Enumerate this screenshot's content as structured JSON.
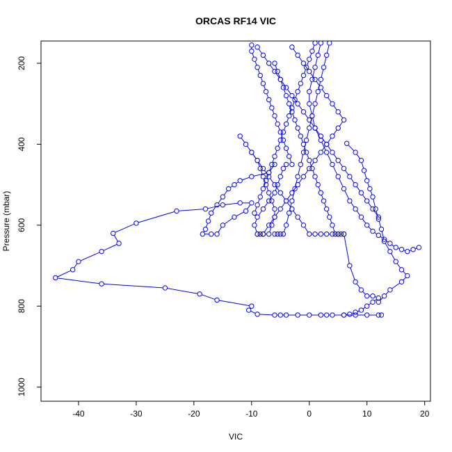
{
  "chart_data": {
    "type": "line",
    "title": "ORCAS RF14 VIC",
    "xlabel": "VIC",
    "ylabel": "Pressure (mbar)",
    "xlim": [
      -46.5,
      21
    ],
    "ylim": [
      1035,
      145
    ],
    "y_reversed": true,
    "grid": false,
    "x_ticks": [
      -40,
      -30,
      -20,
      -10,
      0,
      10,
      20
    ],
    "x_tick_labels": [
      "-40",
      "-30",
      "-20",
      "-10",
      "0",
      "10",
      "20"
    ],
    "y_ticks": [
      200,
      400,
      600,
      800,
      1000
    ],
    "y_tick_labels": [
      "200",
      "400",
      "600",
      "800",
      "1000"
    ],
    "series_color": "#0000ff",
    "series": [
      {
        "x": [
          -6,
          -7,
          -10,
          -12,
          -13,
          -14,
          -15,
          -16,
          -17,
          -17.5,
          -18,
          -18.5,
          -17,
          -16,
          -15,
          -13,
          -11,
          -10,
          -12,
          -15,
          -18,
          -23,
          -30,
          -34,
          -33,
          -36,
          -40,
          -41,
          -44,
          -36,
          -25,
          -19,
          -16,
          -10,
          -10.5,
          -9,
          -6,
          -5,
          -4,
          -2,
          0,
          2,
          3,
          4,
          6,
          8,
          10,
          12,
          12.5
        ],
        "y": [
          450,
          470,
          480,
          490,
          500,
          510,
          530,
          550,
          570,
          590,
          610,
          622,
          622,
          622,
          600,
          580,
          565,
          545,
          545,
          550,
          560,
          565,
          595,
          620,
          645,
          665,
          690,
          710,
          730,
          745,
          755,
          770,
          785,
          800,
          810,
          820,
          822,
          822,
          822,
          822,
          822,
          822,
          822,
          822,
          822,
          822,
          822,
          822,
          822
        ]
      },
      {
        "x": [
          -10,
          -9,
          -8.5,
          -8,
          -7.5,
          -7,
          -6.5,
          -6,
          -6,
          -6.5,
          -7,
          -8,
          -8.5,
          -9,
          -9.5,
          -9,
          -8,
          -7,
          -6,
          -5.5,
          -5,
          -4.5,
          -4
        ],
        "y": [
          420,
          440,
          460,
          480,
          500,
          520,
          540,
          560,
          580,
          600,
          622,
          622,
          622,
          622,
          600,
          580,
          560,
          540,
          520,
          500,
          480,
          460,
          450
        ]
      },
      {
        "x": [
          -12,
          -11,
          -10,
          -9,
          -8,
          -7,
          -6,
          -5,
          -4,
          -3,
          -2,
          -1,
          0,
          1,
          2,
          3,
          4,
          5,
          6,
          7,
          8,
          9,
          10,
          11,
          12,
          11,
          10,
          9,
          8,
          7,
          6
        ],
        "y": [
          380,
          400,
          420,
          440,
          460,
          480,
          500,
          520,
          540,
          560,
          580,
          600,
          622,
          622,
          622,
          622,
          622,
          622,
          622,
          700,
          740,
          760,
          775,
          775,
          780,
          790,
          800,
          810,
          815,
          820,
          822
        ]
      },
      {
        "x": [
          -9,
          -8,
          -7,
          -6,
          -5,
          -4,
          -3,
          -2,
          -1,
          0,
          1,
          2,
          3,
          4,
          5,
          6,
          7,
          8,
          9,
          10,
          11,
          12
        ],
        "y": [
          160,
          180,
          200,
          220,
          240,
          260,
          280,
          300,
          320,
          340,
          360,
          380,
          400,
          420,
          440,
          460,
          480,
          500,
          520,
          540,
          560,
          580
        ]
      },
      {
        "x": [
          -10,
          -10,
          -9.5,
          -9,
          -8.5,
          -8,
          -7.5,
          -7,
          -6.5,
          -6,
          -5.5,
          -5,
          -4.5,
          -4,
          -3.5,
          -3
        ],
        "y": [
          155,
          170,
          190,
          210,
          230,
          250,
          270,
          290,
          310,
          330,
          350,
          370,
          390,
          410,
          430,
          450
        ]
      },
      {
        "x": [
          1,
          0.5,
          0,
          -0.5,
          -1,
          -1.5,
          -2,
          -2.5,
          -3,
          -3.5,
          -4,
          -4.5,
          -5,
          -5.5,
          -6,
          -6.5,
          -7,
          -7.5,
          -8,
          -8.5,
          -9,
          -9.5
        ],
        "y": [
          150,
          170,
          190,
          210,
          230,
          250,
          270,
          290,
          310,
          330,
          350,
          370,
          390,
          410,
          430,
          450,
          470,
          490,
          510,
          530,
          550,
          570
        ]
      },
      {
        "x": [
          -6,
          -5.5,
          -5,
          -4.5,
          -4,
          -3.5,
          -3,
          -2.5,
          -2,
          -1.5,
          -1,
          -0.5,
          0,
          0.5,
          1,
          1.5,
          2,
          2.5,
          3,
          3.5,
          4,
          4.5,
          5,
          5.5,
          6
        ],
        "y": [
          200,
          220,
          240,
          260,
          280,
          300,
          320,
          340,
          360,
          380,
          400,
          420,
          440,
          460,
          480,
          500,
          520,
          540,
          560,
          580,
          600,
          622,
          622,
          622,
          622
        ]
      },
      {
        "x": [
          3.5,
          3,
          2.5,
          2,
          1.5,
          1,
          0.5,
          0,
          -0.5,
          -1,
          -1.5,
          -2,
          -2.5,
          -3,
          -3.5,
          -4,
          -4.5,
          -5,
          -5.5,
          -6
        ],
        "y": [
          150,
          180,
          210,
          240,
          270,
          300,
          330,
          360,
          390,
          420,
          450,
          480,
          510,
          540,
          570,
          600,
          622,
          622,
          622,
          622
        ]
      },
      {
        "x": [
          2,
          1.5,
          1,
          0.5,
          0,
          0,
          0.5,
          1,
          2,
          3,
          4,
          5,
          6,
          7,
          8,
          9,
          10,
          11,
          12,
          13,
          14,
          15,
          16,
          17,
          18,
          19
        ],
        "y": [
          150,
          180,
          210,
          240,
          270,
          300,
          330,
          360,
          390,
          420,
          450,
          480,
          510,
          540,
          560,
          580,
          600,
          615,
          625,
          635,
          645,
          655,
          660,
          665,
          660,
          655
        ]
      },
      {
        "x": [
          6.5,
          8,
          9,
          9.5,
          10,
          10.5,
          11,
          11.5,
          12,
          12.5,
          13,
          14,
          15,
          16,
          17,
          16,
          14,
          13,
          12
        ],
        "y": [
          398,
          420,
          440,
          465,
          490,
          510,
          530,
          560,
          585,
          610,
          640,
          665,
          690,
          710,
          725,
          740,
          760,
          775,
          790
        ]
      },
      {
        "x": [
          -3,
          -2,
          -1,
          0,
          1,
          2,
          3,
          4,
          5,
          6,
          5,
          4,
          3,
          2,
          1,
          0,
          -1,
          -2,
          -3,
          -4,
          -5,
          -6,
          -7,
          -8,
          -9
        ],
        "y": [
          160,
          180,
          200,
          220,
          240,
          260,
          280,
          300,
          320,
          340,
          360,
          380,
          400,
          420,
          440,
          460,
          480,
          500,
          520,
          540,
          560,
          580,
          600,
          622,
          622
        ]
      }
    ]
  }
}
